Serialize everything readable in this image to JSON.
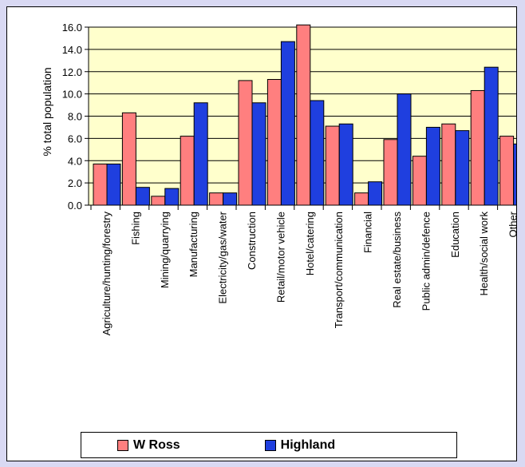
{
  "chart_data": {
    "type": "bar",
    "title": "",
    "xlabel": "",
    "ylabel": "% total population",
    "ylim": [
      0,
      16
    ],
    "yticks": [
      "0.0",
      "2.0",
      "4.0",
      "6.0",
      "8.0",
      "10.0",
      "12.0",
      "14.0",
      "16.0"
    ],
    "grid": true,
    "legend_position": "bottom",
    "plot_background": "#ffffcc",
    "categories": [
      "Agriculture/hunting/forestry",
      "Fishing",
      "Mining/quarrying",
      "Manufacturing",
      "Electricity/gas/water",
      "Construction",
      "Retail/motor vehicle",
      "Hotel/catering",
      "Transport/communication",
      "Financial",
      "Real estate/business",
      "Public admin/defence",
      "Education",
      "Health/social work",
      "Other"
    ],
    "series": [
      {
        "name": "W Ross",
        "color": "#ff7f7f",
        "values": [
          3.7,
          8.3,
          0.8,
          6.2,
          1.1,
          11.2,
          11.3,
          16.2,
          7.1,
          1.1,
          5.9,
          4.4,
          7.3,
          10.3,
          6.2
        ]
      },
      {
        "name": "Highland",
        "color": "#1f3fdf",
        "values": [
          3.7,
          1.6,
          1.5,
          9.2,
          1.1,
          9.2,
          14.7,
          9.4,
          7.3,
          2.1,
          10.0,
          7.0,
          6.7,
          12.4,
          5.5
        ]
      }
    ]
  }
}
